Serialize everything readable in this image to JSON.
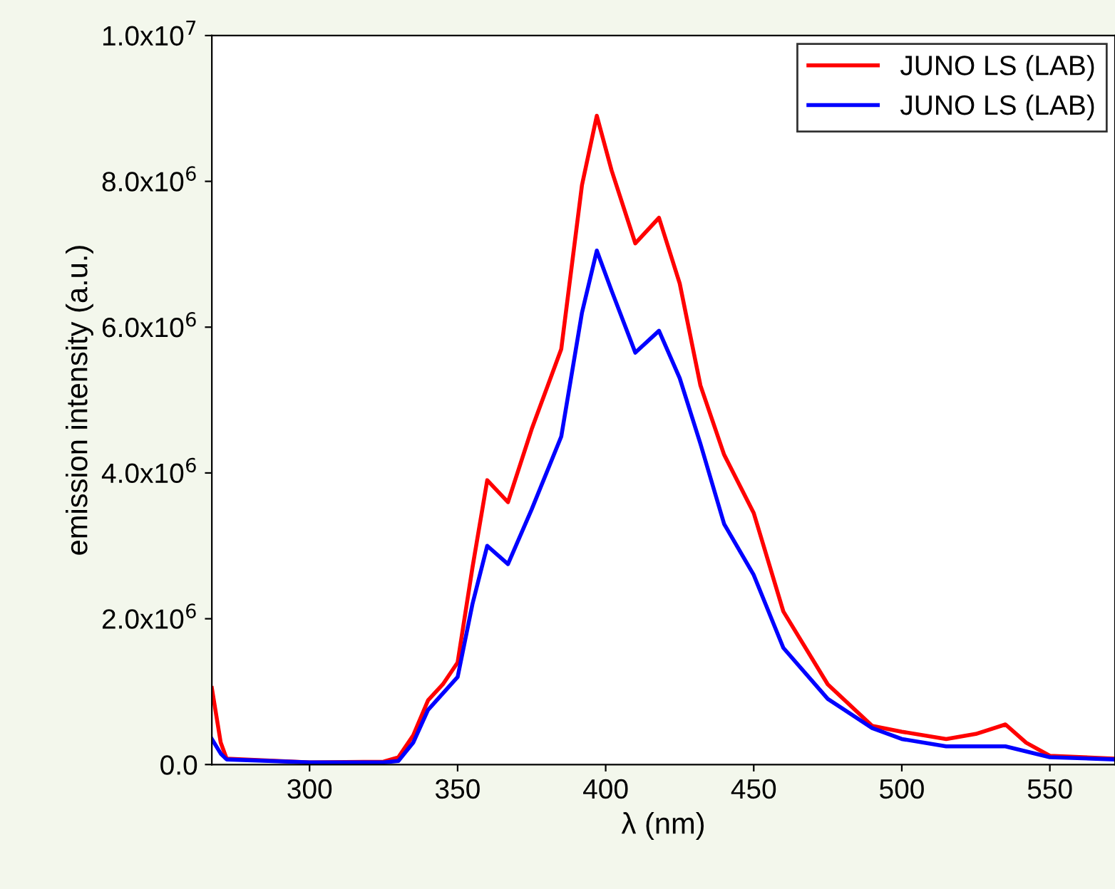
{
  "chart_data": {
    "type": "line",
    "xlabel": "λ (nm)",
    "ylabel": "emission intensity (a.u.)",
    "xlim": [
      267,
      572
    ],
    "ylim": [
      0,
      10000000
    ],
    "xticks": [
      300,
      350,
      400,
      450,
      500,
      550
    ],
    "yticks": [
      {
        "value": 0,
        "label": "0.0"
      },
      {
        "value": 2000000,
        "label": "2.0x10$^{6}$"
      },
      {
        "value": 4000000,
        "label": "4.0x10$^{6}$"
      },
      {
        "value": 6000000,
        "label": "6.0x10$^{6}$"
      },
      {
        "value": 8000000,
        "label": "8.0x10$^{6}$"
      },
      {
        "value": 10000000,
        "label": "1.0x10$^{7}$"
      }
    ],
    "legend": "top right",
    "grid": false,
    "series": [
      {
        "name": "JUNO LS (LAB)",
        "color": "#ff0000",
        "x": [
          267,
          270,
          272,
          300,
          325,
          330,
          335,
          340,
          345,
          350,
          355,
          360,
          367,
          375,
          385,
          392,
          397,
          402,
          410,
          418,
          425,
          432,
          440,
          450,
          460,
          475,
          490,
          500,
          515,
          525,
          535,
          542,
          550,
          572
        ],
        "values": [
          1050000,
          300000,
          80000,
          30000,
          40000,
          100000,
          400000,
          880000,
          1100000,
          1400000,
          2700000,
          3900000,
          3600000,
          4600000,
          5700000,
          7950000,
          8900000,
          8150000,
          7150000,
          7500000,
          6600000,
          5200000,
          4250000,
          3450000,
          2100000,
          1100000,
          530000,
          450000,
          350000,
          420000,
          550000,
          300000,
          120000,
          80000
        ]
      },
      {
        "name": "JUNO LS (LAB)",
        "color": "#0000ff",
        "x": [
          267,
          270,
          272,
          300,
          325,
          330,
          335,
          340,
          350,
          355,
          360,
          367,
          375,
          385,
          392,
          397,
          402,
          410,
          418,
          425,
          432,
          440,
          450,
          460,
          475,
          490,
          500,
          515,
          535,
          550,
          572
        ],
        "values": [
          350000,
          150000,
          70000,
          30000,
          30000,
          50000,
          300000,
          750000,
          1200000,
          2200000,
          3000000,
          2750000,
          3500000,
          4500000,
          6200000,
          7050000,
          6500000,
          5650000,
          5950000,
          5300000,
          4400000,
          3300000,
          2600000,
          1600000,
          900000,
          500000,
          350000,
          250000,
          250000,
          100000,
          70000
        ]
      }
    ]
  }
}
